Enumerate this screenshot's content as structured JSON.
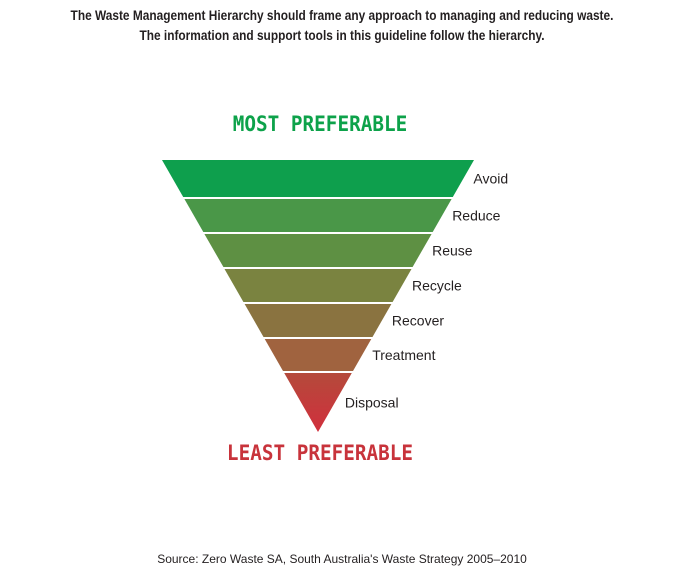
{
  "intro": {
    "line1": "The Waste Management Hierarchy should frame any approach to managing and reducing waste.",
    "line2": "The information and support tools in this guideline follow the hierarchy."
  },
  "top_heading": {
    "text": "MOST PREFERABLE",
    "color": "#0da24a"
  },
  "bottom_heading": {
    "text": "LEAST PREFERABLE",
    "color": "#c8333b"
  },
  "levels": [
    {
      "label": "Avoid",
      "color": "#0e9f4d"
    },
    {
      "label": "Reduce",
      "color": "#4a9748"
    },
    {
      "label": "Reuse",
      "color": "#5e9043"
    },
    {
      "label": "Recycle",
      "color": "#7a8340"
    },
    {
      "label": "Recover",
      "color": "#8a7340"
    },
    {
      "label": "Treatment",
      "color": "#a0633f"
    },
    {
      "label": "Disposal",
      "color": "#c03a3a"
    }
  ],
  "source": "Source: Zero Waste SA, South Australia's Waste Strategy 2005–2010"
}
